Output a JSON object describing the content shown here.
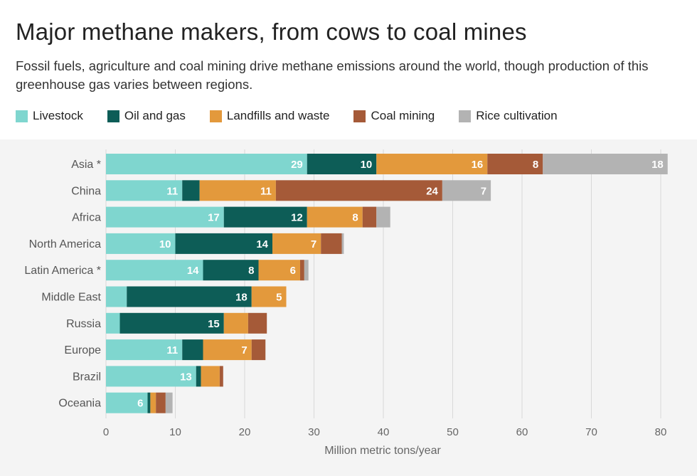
{
  "title": "Major methane makers, from cows to coal mines",
  "subtitle": "Fossil fuels, agriculture and coal mining drive methane emissions around the world, though production of this greenhouse gas varies between regions.",
  "chart_data": {
    "type": "bar",
    "orientation": "horizontal",
    "stacked": true,
    "title": "Major methane makers, from cows to coal mines",
    "xlabel": "Million metric tons/year",
    "ylabel": "",
    "xlim": [
      0,
      80
    ],
    "xticks": [
      0,
      10,
      20,
      30,
      40,
      50,
      60,
      70,
      80
    ],
    "grid": true,
    "legend_position": "top-left",
    "categories": [
      "Asia *",
      "China",
      "Africa",
      "North America",
      "Latin America *",
      "Middle East",
      "Russia",
      "Europe",
      "Brazil",
      "Oceania"
    ],
    "series": [
      {
        "name": "Livestock",
        "color": "#7fd6cf",
        "values": [
          29,
          11,
          17,
          10,
          14,
          3,
          2,
          11,
          13,
          6
        ],
        "labels": [
          "29",
          "11",
          "17",
          "10",
          "14",
          "",
          "",
          "11",
          "13",
          "6"
        ]
      },
      {
        "name": "Oil and gas",
        "color": "#0d5d57",
        "values": [
          10,
          2.5,
          12,
          14,
          8,
          18,
          15,
          3,
          0.7,
          0.4
        ],
        "labels": [
          "10",
          "",
          "12",
          "14",
          "8",
          "18",
          "15",
          "",
          "",
          ""
        ]
      },
      {
        "name": "Landfills and waste",
        "color": "#e3993c",
        "values": [
          16,
          11,
          8,
          7,
          6,
          5,
          3.5,
          7,
          2.7,
          0.8
        ],
        "labels": [
          "16",
          "11",
          "8",
          "7",
          "6",
          "5",
          "",
          "7",
          "",
          ""
        ]
      },
      {
        "name": "Coal mining",
        "color": "#a55a38",
        "values": [
          8,
          24,
          2,
          3,
          0.6,
          0,
          2.7,
          2,
          0.5,
          1.4
        ],
        "labels": [
          "8",
          "24",
          "",
          "",
          "",
          "",
          "",
          "",
          "",
          ""
        ]
      },
      {
        "name": "Rice cultivation",
        "color": "#b3b3b3",
        "values": [
          18,
          7,
          2,
          0.3,
          0.6,
          0,
          0,
          0,
          0,
          1
        ],
        "labels": [
          "18",
          "7",
          "",
          "",
          "",
          "",
          "",
          "",
          "",
          ""
        ]
      }
    ]
  }
}
